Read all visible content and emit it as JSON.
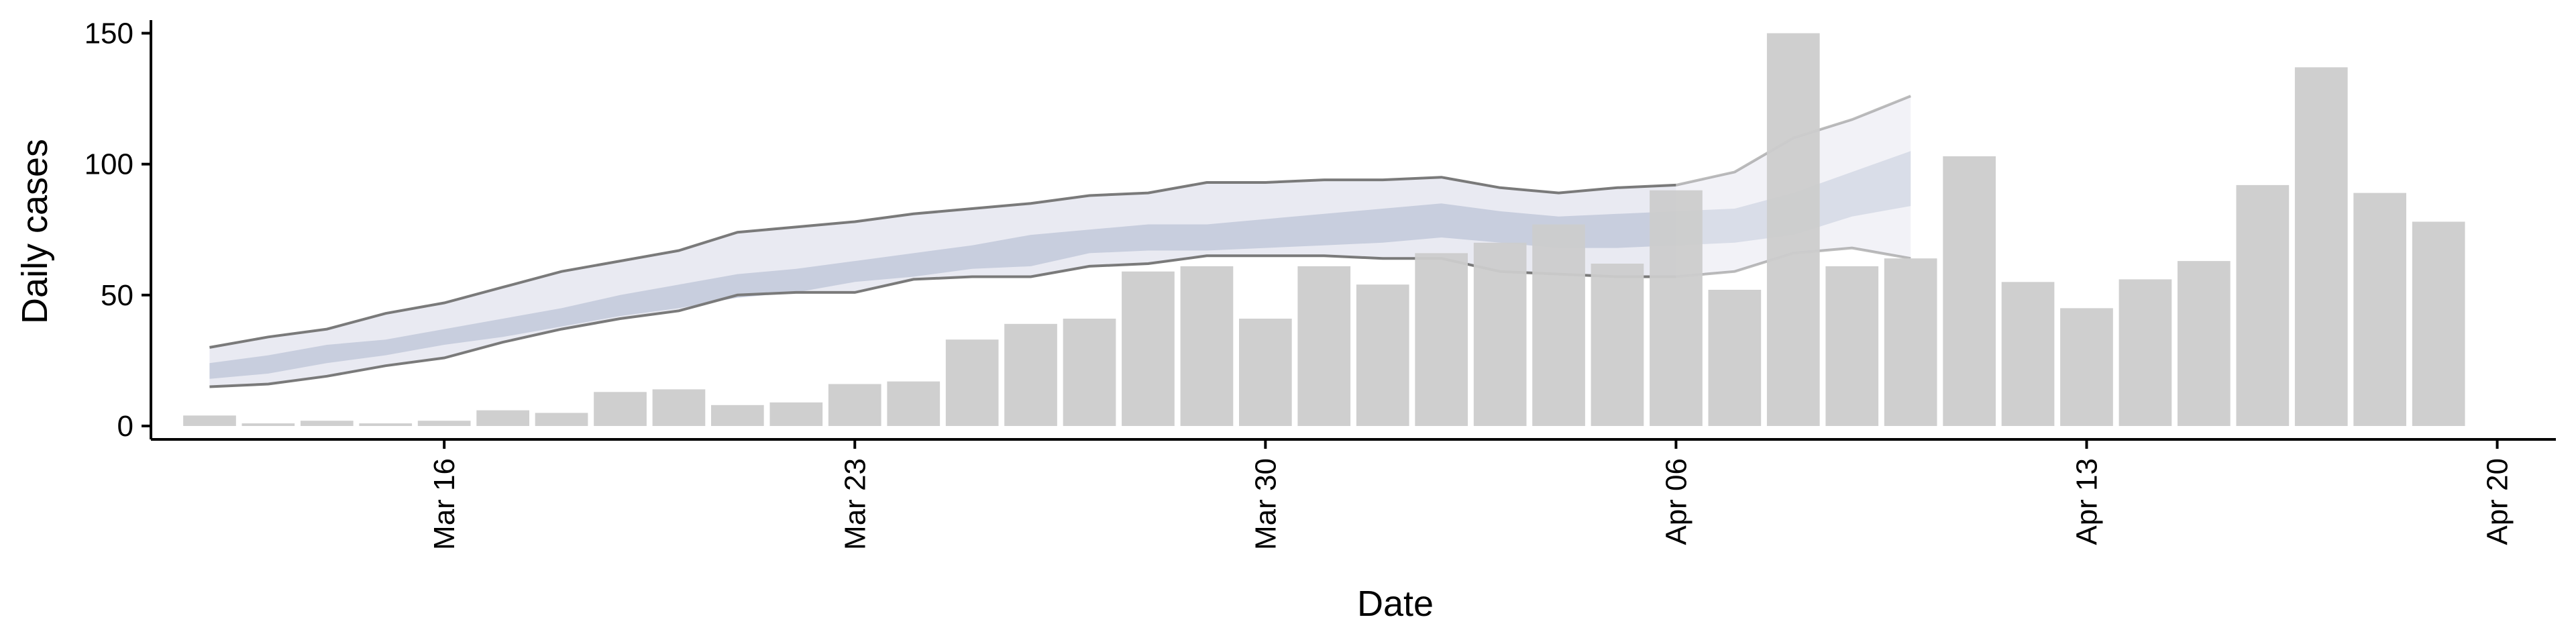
{
  "chart_data": {
    "type": "bar",
    "xlabel": "Date",
    "ylabel": "Daily cases",
    "ylim": [
      0,
      155
    ],
    "y_ticks": [
      0,
      50,
      100,
      150
    ],
    "x_range": [
      "2020-03-11",
      "2020-04-21"
    ],
    "x_ticks": [
      {
        "date": "2020-03-16",
        "label": "Mar 16"
      },
      {
        "date": "2020-03-23",
        "label": "Mar 23"
      },
      {
        "date": "2020-03-30",
        "label": "Mar 30"
      },
      {
        "date": "2020-04-06",
        "label": "Apr 06"
      },
      {
        "date": "2020-04-13",
        "label": "Apr 13"
      },
      {
        "date": "2020-04-20",
        "label": "Apr 20"
      }
    ],
    "grid": false,
    "legend": "none",
    "bars": {
      "name": "",
      "color": "#cccccc",
      "dates": [
        "2020-03-12",
        "2020-03-13",
        "2020-03-14",
        "2020-03-15",
        "2020-03-16",
        "2020-03-17",
        "2020-03-18",
        "2020-03-19",
        "2020-03-20",
        "2020-03-21",
        "2020-03-22",
        "2020-03-23",
        "2020-03-24",
        "2020-03-25",
        "2020-03-26",
        "2020-03-27",
        "2020-03-28",
        "2020-03-29",
        "2020-03-30",
        "2020-03-31",
        "2020-04-01",
        "2020-04-02",
        "2020-04-03",
        "2020-04-04",
        "2020-04-05",
        "2020-04-06",
        "2020-04-07",
        "2020-04-08",
        "2020-04-09",
        "2020-04-10",
        "2020-04-11",
        "2020-04-12",
        "2020-04-13",
        "2020-04-14",
        "2020-04-15",
        "2020-04-16",
        "2020-04-17",
        "2020-04-18",
        "2020-04-19"
      ],
      "values": [
        4,
        1,
        2,
        1,
        2,
        6,
        5,
        13,
        14,
        8,
        9,
        16,
        17,
        33,
        39,
        41,
        59,
        61,
        41,
        61,
        54,
        66,
        70,
        77,
        62,
        90,
        52,
        150,
        61,
        64,
        103,
        55,
        45,
        56,
        63,
        92,
        137,
        89,
        78
      ]
    },
    "bands": {
      "dates": [
        "2020-03-12",
        "2020-03-13",
        "2020-03-14",
        "2020-03-15",
        "2020-03-16",
        "2020-03-17",
        "2020-03-18",
        "2020-03-19",
        "2020-03-20",
        "2020-03-21",
        "2020-03-22",
        "2020-03-23",
        "2020-03-24",
        "2020-03-25",
        "2020-03-26",
        "2020-03-27",
        "2020-03-28",
        "2020-03-29",
        "2020-03-30",
        "2020-03-31",
        "2020-04-01",
        "2020-04-02",
        "2020-04-03",
        "2020-04-04",
        "2020-04-05",
        "2020-04-06",
        "2020-04-07",
        "2020-04-08",
        "2020-04-09",
        "2020-04-10"
      ],
      "forecast_start": "2020-04-07",
      "outer_upper": [
        30,
        34,
        37,
        43,
        47,
        53,
        59,
        63,
        67,
        74,
        76,
        78,
        81,
        83,
        85,
        88,
        89,
        93,
        93,
        94,
        94,
        95,
        91,
        89,
        91,
        92,
        97,
        110,
        117,
        126
      ],
      "outer_lower": [
        15,
        16,
        19,
        23,
        26,
        32,
        37,
        41,
        44,
        50,
        51,
        51,
        56,
        57,
        57,
        61,
        62,
        65,
        65,
        65,
        64,
        64,
        59,
        58,
        57,
        57,
        59,
        66,
        68,
        64
      ],
      "inner_upper": [
        24,
        27,
        31,
        33,
        37,
        41,
        45,
        50,
        54,
        58,
        60,
        63,
        66,
        69,
        73,
        75,
        77,
        77,
        79,
        81,
        83,
        85,
        82,
        80,
        81,
        82,
        83,
        89,
        97,
        105
      ],
      "inner_lower": [
        18,
        20,
        24,
        27,
        31,
        34,
        38,
        42,
        45,
        49,
        51,
        55,
        57,
        60,
        61,
        66,
        67,
        67,
        68,
        69,
        70,
        72,
        70,
        68,
        68,
        69,
        70,
        73,
        80,
        84
      ],
      "outer_color": "#e9eaf2",
      "inner_color": "#c8cede",
      "line_color": "#7a7a7a"
    }
  }
}
